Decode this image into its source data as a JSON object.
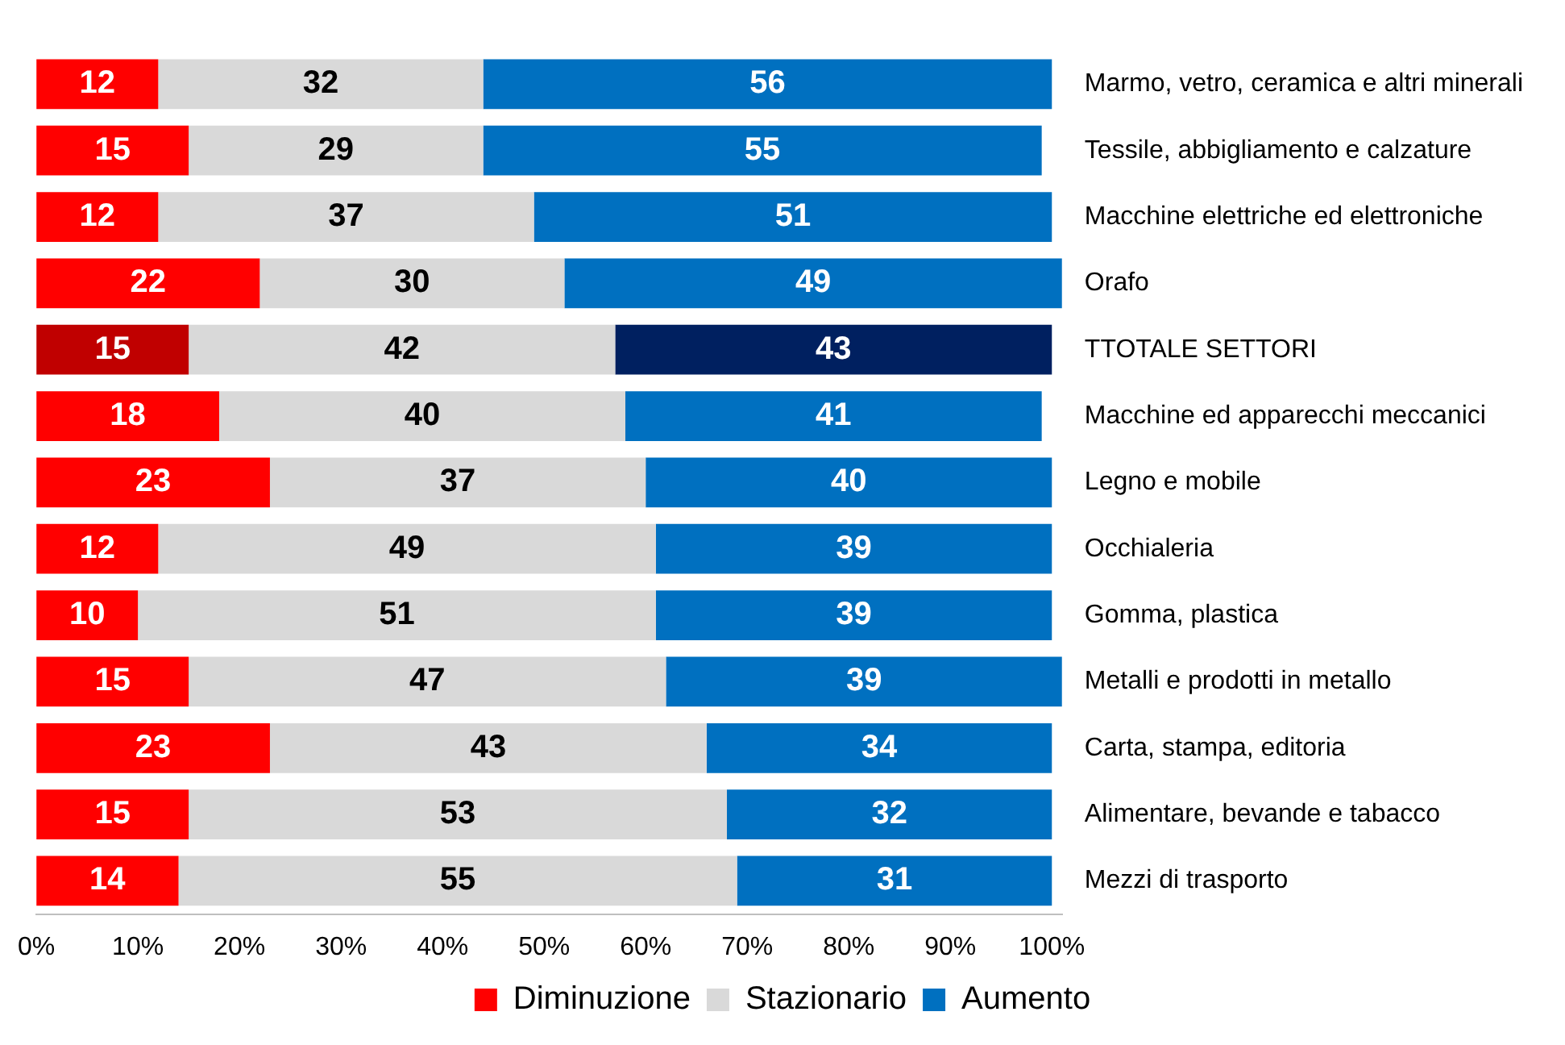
{
  "chart_data": {
    "type": "bar",
    "orientation": "horizontal",
    "stacked": true,
    "categories": [
      "Marmo, vetro, ceramica e altri minerali",
      "Tessile, abbigliamento e calzature",
      "Macchine elettriche ed elettroniche",
      "Orafo",
      "TTOTALE SETTORI",
      "Macchine ed apparecchi meccanici",
      "Legno e mobile",
      "Occhialeria",
      "Gomma, plastica",
      "Metalli e prodotti in metallo",
      "Carta, stampa, editoria",
      "Alimentare, bevande e tabacco",
      "Mezzi di trasporto"
    ],
    "series": [
      {
        "name": "Diminuzione",
        "color": "#ff0000",
        "colors": [
          "#ff0000",
          "#ff0000",
          "#ff0000",
          "#ff0000",
          "#c00000",
          "#ff0000",
          "#ff0000",
          "#ff0000",
          "#ff0000",
          "#ff0000",
          "#ff0000",
          "#ff0000",
          "#ff0000"
        ],
        "values": [
          12,
          15,
          12,
          22,
          15,
          18,
          23,
          12,
          10,
          15,
          23,
          15,
          14
        ]
      },
      {
        "name": "Stazionario",
        "color": "#d9d9d9",
        "colors": [
          "#d9d9d9",
          "#d9d9d9",
          "#d9d9d9",
          "#d9d9d9",
          "#d9d9d9",
          "#d9d9d9",
          "#d9d9d9",
          "#d9d9d9",
          "#d9d9d9",
          "#d9d9d9",
          "#d9d9d9",
          "#d9d9d9",
          "#d9d9d9"
        ],
        "values": [
          32,
          29,
          37,
          30,
          42,
          40,
          37,
          49,
          51,
          47,
          43,
          53,
          55
        ]
      },
      {
        "name": "Aumento",
        "color": "#0070c0",
        "colors": [
          "#0070c0",
          "#0070c0",
          "#0070c0",
          "#0070c0",
          "#002060",
          "#0070c0",
          "#0070c0",
          "#0070c0",
          "#0070c0",
          "#0070c0",
          "#0070c0",
          "#0070c0",
          "#0070c0"
        ],
        "values": [
          56,
          55,
          51,
          49,
          43,
          41,
          40,
          39,
          39,
          39,
          34,
          32,
          31
        ]
      }
    ],
    "xlim": [
      0,
      101
    ],
    "xticks": [
      {
        "value": 0,
        "label": "0%"
      },
      {
        "value": 10,
        "label": "10%"
      },
      {
        "value": 20,
        "label": "20%"
      },
      {
        "value": 30,
        "label": "30%"
      },
      {
        "value": 40,
        "label": "40%"
      },
      {
        "value": 50,
        "label": "50%"
      },
      {
        "value": 60,
        "label": "60%"
      },
      {
        "value": 70,
        "label": "70%"
      },
      {
        "value": 80,
        "label": "80%"
      },
      {
        "value": 90,
        "label": "90%"
      },
      {
        "value": 100,
        "label": "100%"
      }
    ],
    "data_labels": true,
    "grid": false,
    "legend": "bottom"
  }
}
